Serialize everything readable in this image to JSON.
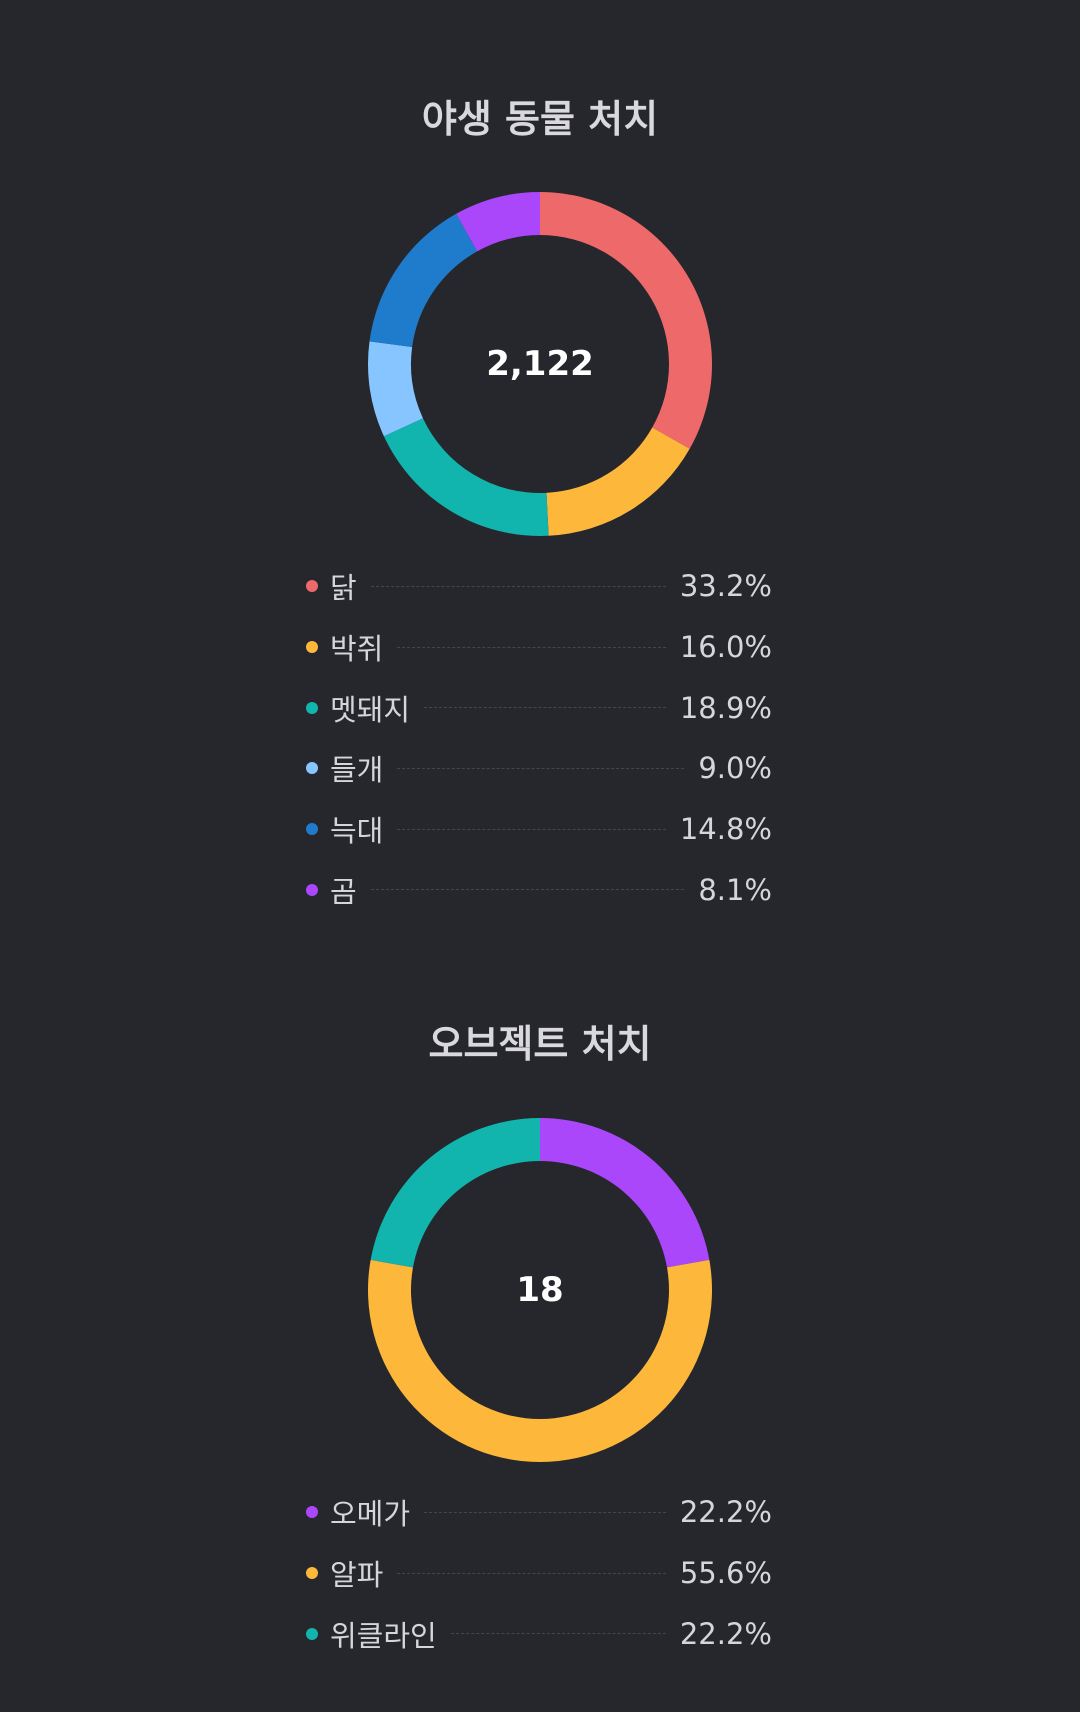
{
  "chart_data": [
    {
      "type": "pie",
      "title": "야생 동물 처치",
      "center_label": "2,122",
      "slices": [
        {
          "label": "닭",
          "value": 33.2,
          "value_label": "33.2%",
          "color": "#ee6a6a"
        },
        {
          "label": "박쥐",
          "value": 16.0,
          "value_label": "16.0%",
          "color": "#fdb73b"
        },
        {
          "label": "멧돼지",
          "value": 18.9,
          "value_label": "18.9%",
          "color": "#12b5ad"
        },
        {
          "label": "들개",
          "value": 9.0,
          "value_label": "9.0%",
          "color": "#86c5ff"
        },
        {
          "label": "늑대",
          "value": 14.8,
          "value_label": "14.8%",
          "color": "#1f7ccd"
        },
        {
          "label": "곰",
          "value": 8.1,
          "value_label": "8.1%",
          "color": "#ab47fa"
        }
      ]
    },
    {
      "type": "pie",
      "title": "오브젝트 처치",
      "center_label": "18",
      "slices": [
        {
          "label": "오메가",
          "value": 22.2,
          "value_label": "22.2%",
          "color": "#ab47fa"
        },
        {
          "label": "알파",
          "value": 55.6,
          "value_label": "55.6%",
          "color": "#fdb73b"
        },
        {
          "label": "위클라인",
          "value": 22.2,
          "value_label": "22.2%",
          "color": "#12b5ad"
        }
      ]
    }
  ]
}
